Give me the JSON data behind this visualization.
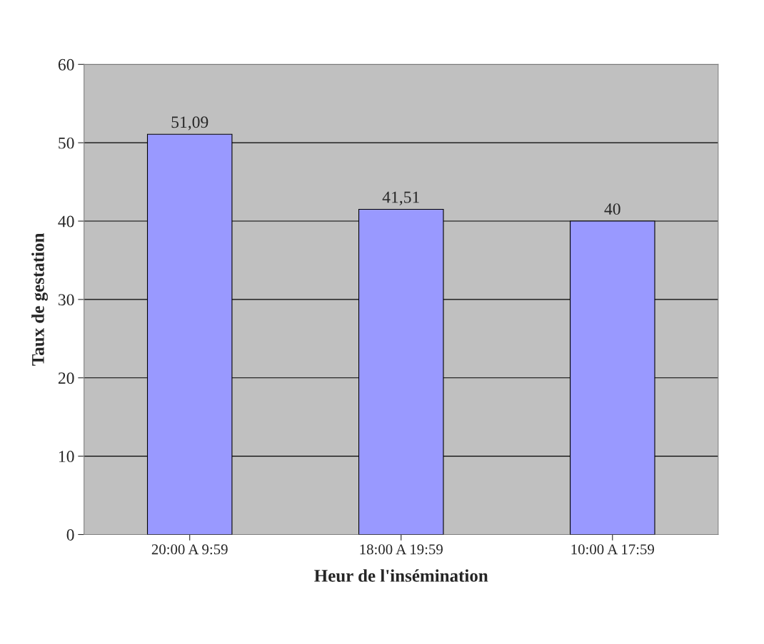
{
  "chart_data": {
    "type": "bar",
    "xlabel": "Heur de l'insémination",
    "ylabel": "Taux de gestation",
    "categories": [
      "20:00 A 9:59",
      "18:00 A 19:59",
      "10:00 A 17:59"
    ],
    "values": [
      51.09,
      41.51,
      40
    ],
    "value_labels": [
      "51,09",
      "41,51",
      "40"
    ],
    "color": "#9999ff",
    "ylim": [
      0,
      60
    ],
    "yticks": [
      0,
      10,
      20,
      30,
      40,
      50,
      60
    ],
    "grid": "y"
  }
}
